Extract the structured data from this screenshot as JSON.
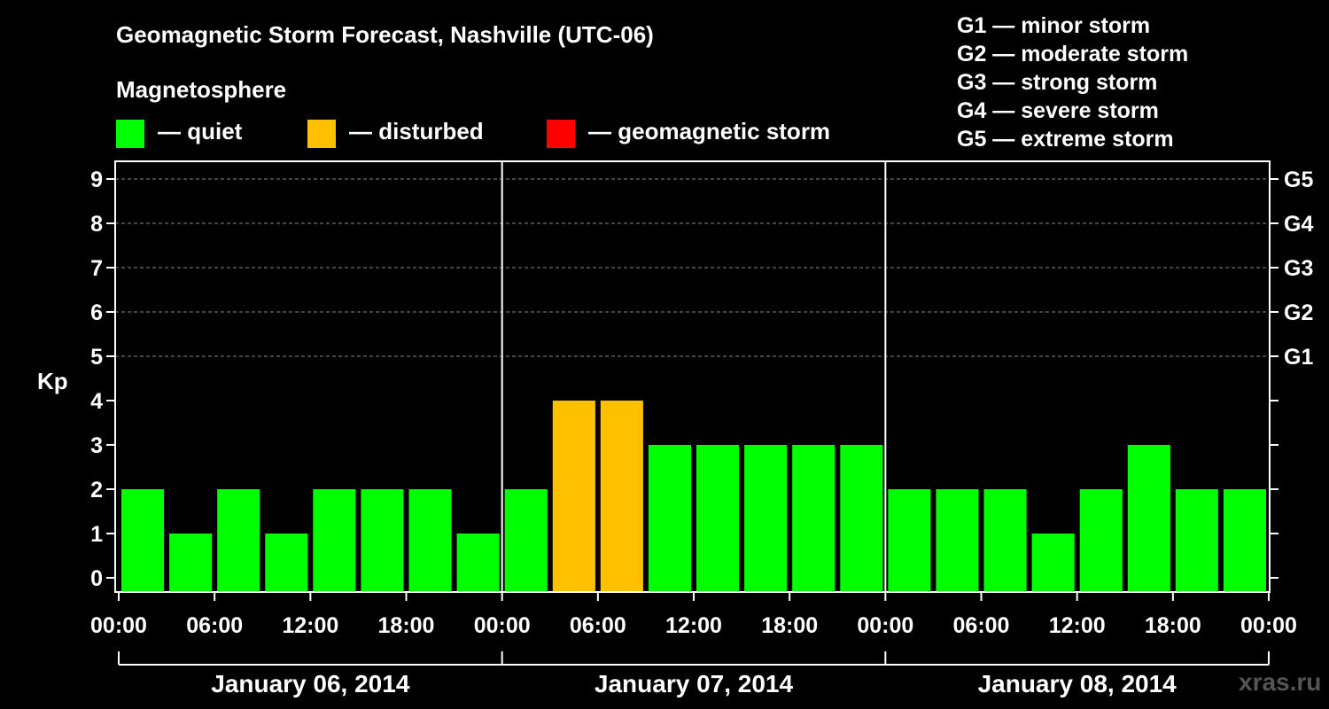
{
  "title": "Geomagnetic Storm Forecast, Nashville (UTC-06)",
  "magnetosphere_title": "Magnetosphere",
  "legend": [
    {
      "key": "quiet",
      "label": "— quiet",
      "color": "#00ff00"
    },
    {
      "key": "disturbed",
      "label": "— disturbed",
      "color": "#ffc000"
    },
    {
      "key": "storm",
      "label": "— geomagnetic storm",
      "color": "#ff0000"
    }
  ],
  "storm_scale": [
    "G1 — minor storm",
    "G2 — moderate storm",
    "G3 — strong storm",
    "G4 — severe storm",
    "G5 — extreme storm"
  ],
  "watermark": "xras.ru",
  "chart_data": {
    "type": "bar",
    "title": "Geomagnetic Storm Forecast, Nashville (UTC-06)",
    "ylabel": "Kp",
    "xlabel": "",
    "ylim": [
      0,
      9
    ],
    "y_ticks": [
      0,
      1,
      2,
      3,
      4,
      5,
      6,
      7,
      8,
      9
    ],
    "right_axis_labels": [
      {
        "kp": 5,
        "label": "G1"
      },
      {
        "kp": 6,
        "label": "G2"
      },
      {
        "kp": 7,
        "label": "G3"
      },
      {
        "kp": 8,
        "label": "G4"
      },
      {
        "kp": 9,
        "label": "G5"
      }
    ],
    "time_tick_labels": [
      "00:00",
      "06:00",
      "12:00",
      "18:00",
      "00:00",
      "06:00",
      "12:00",
      "18:00",
      "00:00",
      "06:00",
      "12:00",
      "18:00",
      "00:00"
    ],
    "days": [
      "January 06, 2014",
      "January 07, 2014",
      "January 08, 2014"
    ],
    "bar_interval_hours": 3,
    "values": [
      2,
      1,
      2,
      1,
      2,
      2,
      2,
      1,
      2,
      4,
      4,
      3,
      3,
      3,
      3,
      3,
      2,
      2,
      2,
      1,
      2,
      3,
      2,
      2
    ],
    "thresholds": {
      "disturbed_min": 4,
      "storm_min": 5
    },
    "colors": {
      "quiet": "#00ff00",
      "disturbed": "#ffc000",
      "storm": "#ff0000"
    },
    "grid": "horizontal dashed at Kp 5-9"
  }
}
